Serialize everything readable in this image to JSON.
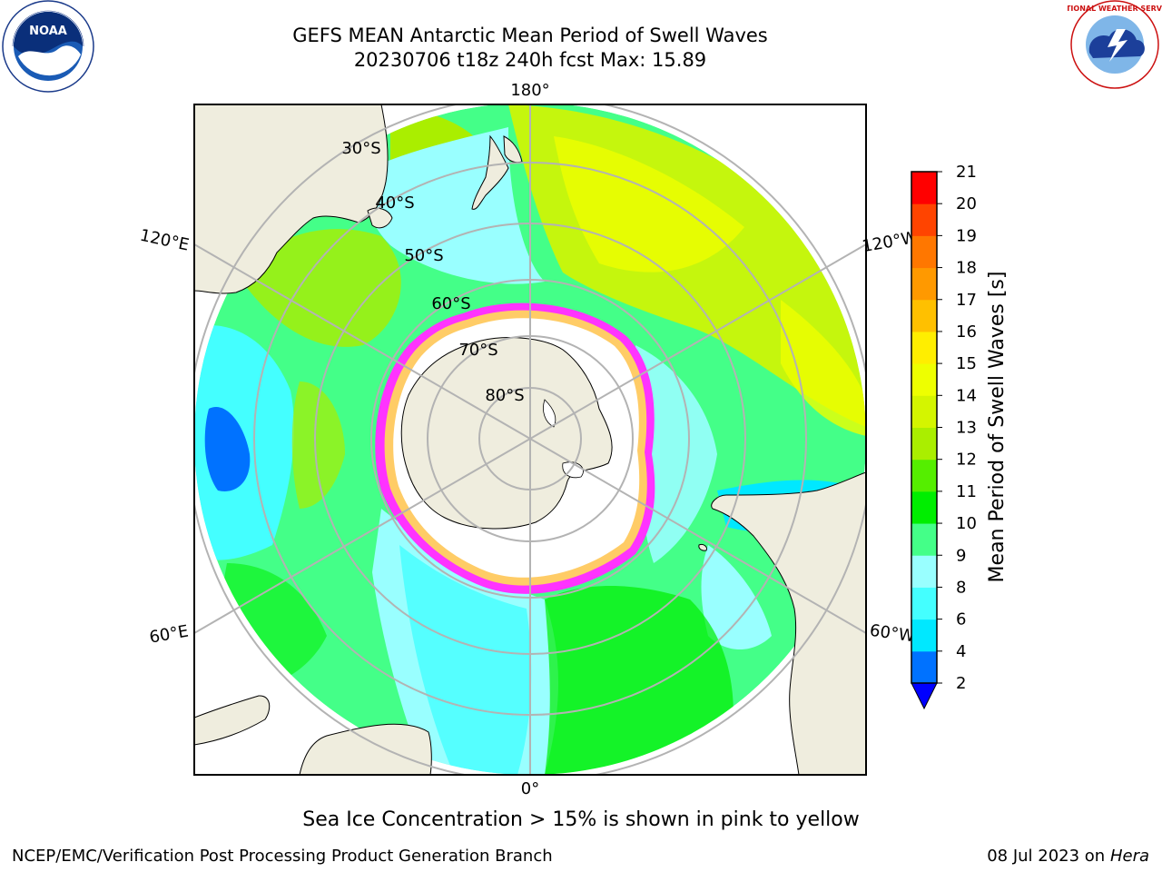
{
  "header": {
    "title_line1": "GEFS MEAN Antarctic Mean Period of Swell Waves",
    "title_line2": "20230706 t18z 240h fcst   Max: 15.89"
  },
  "logos": {
    "left": {
      "name": "NOAA",
      "ring_text": "NATIONAL OCEANIC AND ATMOSPHERIC ADMINISTRATION · U.S. DEPARTMENT OF COMMERCE"
    },
    "right": {
      "name": "NATIONAL WEATHER SERVICE"
    }
  },
  "map": {
    "projection": "south-polar-stereographic",
    "longitude_labels": {
      "top": "180°",
      "bottom": "0°",
      "upper_left": "120°E",
      "upper_right": "120°W",
      "lower_left": "60°E",
      "lower_right": "60°W"
    },
    "latitude_labels": [
      "30°S",
      "40°S",
      "50°S",
      "60°S",
      "70°S",
      "80°S"
    ],
    "land_color": "#efedde",
    "sea_ice_colors": [
      "#ff33ff",
      "#ff99cc",
      "#ffcc66"
    ]
  },
  "colorbar": {
    "label": "Mean Period of Swell Waves [s]",
    "ticks": [
      "2",
      "4",
      "6",
      "8",
      "9",
      "10",
      "11",
      "12",
      "13",
      "14",
      "15",
      "16",
      "17",
      "18",
      "19",
      "20",
      "21"
    ],
    "colors": [
      "#0072ff",
      "#00e8ff",
      "#44ffff",
      "#99ffff",
      "#44ff88",
      "#00ee00",
      "#55ee00",
      "#aaee00",
      "#d4f500",
      "#eeff00",
      "#ffee00",
      "#ffc000",
      "#ff9900",
      "#ff7700",
      "#ff4400",
      "#ff0000"
    ],
    "under_color": "#0000ff",
    "over_color": "#ff0000"
  },
  "note": "Sea Ice Concentration > 15% is shown in pink to yellow",
  "footer": {
    "left": "NCEP/EMC/Verification Post Processing Product Generation Branch",
    "right_date": "08 Jul 2023 on",
    "right_host": "Hera"
  }
}
